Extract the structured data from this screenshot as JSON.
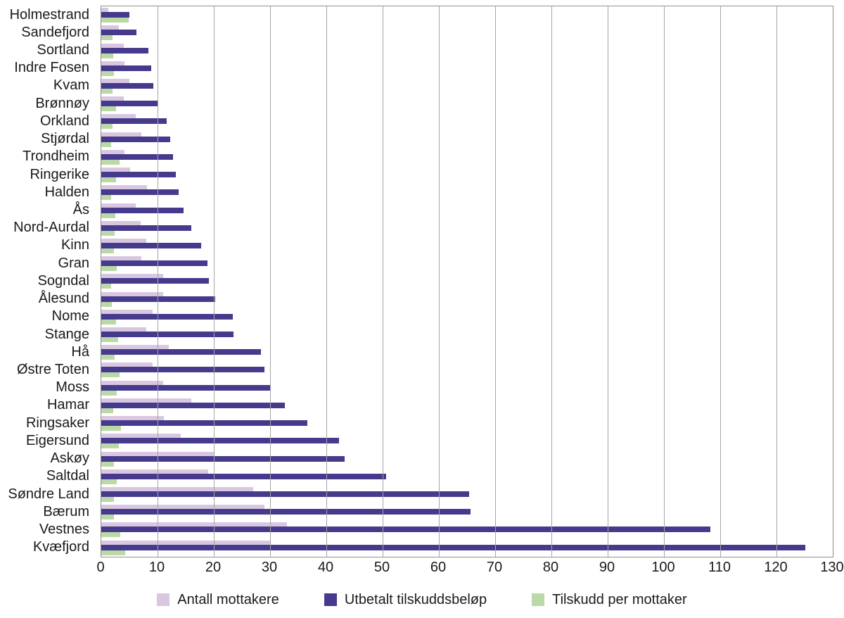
{
  "chart_data": {
    "type": "bar",
    "orientation": "horizontal",
    "title": "",
    "xlabel": "",
    "ylabel": "",
    "xlim": [
      0,
      130
    ],
    "xticks": [
      0,
      10,
      20,
      30,
      40,
      50,
      60,
      70,
      80,
      90,
      100,
      110,
      120,
      130
    ],
    "grid": "vertical",
    "legend_position": "bottom-center",
    "categories": [
      "Holmestrand",
      "Sandefjord",
      "Sortland",
      "Indre Fosen",
      "Kvam",
      "Brønnøy",
      "Orkland",
      "Stjørdal",
      "Trondheim",
      "Ringerike",
      "Halden",
      "Ås",
      "Nord-Aurdal",
      "Kinn",
      "Gran",
      "Sogndal",
      "Ålesund",
      "Nome",
      "Stange",
      "Hå",
      "Østre Toten",
      "Moss",
      "Hamar",
      "Ringsaker",
      "Eigersund",
      "Askøy",
      "Saltdal",
      "Søndre Land",
      "Bærum",
      "Vestnes",
      "Kvæfjord"
    ],
    "series": [
      {
        "name": "Antall mottakere",
        "color": "#d9c7e1",
        "values": [
          1.2,
          3.1,
          4.0,
          4.1,
          5.0,
          4.0,
          6.1,
          7.1,
          4.1,
          5.1,
          8.1,
          6.1,
          7.0,
          8.0,
          7.1,
          11.0,
          11.0,
          9.1,
          8.0,
          12.0,
          9.1,
          11.0,
          16.0,
          11.1,
          14.1,
          20.0,
          19.0,
          27.0,
          29.0,
          33.0,
          30.0
        ]
      },
      {
        "name": "Utbetalt tilskuddsbeløp",
        "color": "#453a8c",
        "values": [
          5.0,
          6.3,
          8.4,
          8.9,
          9.3,
          10.0,
          11.6,
          12.2,
          12.7,
          13.3,
          13.7,
          14.6,
          16.0,
          17.7,
          18.9,
          19.1,
          20.3,
          23.4,
          23.5,
          28.4,
          29.0,
          30.0,
          32.6,
          36.6,
          42.3,
          43.3,
          50.6,
          65.4,
          65.6,
          108.3,
          125.1
        ]
      },
      {
        "name": "Tilskudd per mottaker",
        "color": "#bbd9a6",
        "values": [
          4.9,
          2.0,
          2.1,
          2.2,
          2.0,
          2.6,
          2.0,
          1.8,
          3.2,
          2.6,
          1.7,
          2.5,
          2.4,
          2.3,
          2.8,
          1.8,
          1.9,
          2.6,
          3.0,
          2.4,
          3.2,
          2.8,
          2.1,
          3.5,
          3.1,
          2.2,
          2.7,
          2.2,
          2.2,
          3.4,
          4.3
        ]
      }
    ],
    "colors": {
      "gridline": "#a5a5a5",
      "plot_border": "#8f8f8f",
      "text": "#1a1a1a",
      "background": "#ffffff"
    }
  }
}
